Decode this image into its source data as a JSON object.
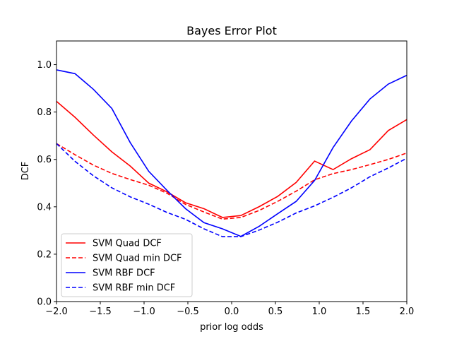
{
  "chart_data": {
    "type": "line",
    "title": "Bayes Error Plot",
    "xlabel": "prior log odds",
    "ylabel": "DCF",
    "xlim": [
      -2.0,
      2.0
    ],
    "ylim": [
      0.0,
      1.1
    ],
    "xticks": [
      -2.0,
      -1.5,
      -1.0,
      -0.5,
      0.0,
      0.5,
      1.0,
      1.5,
      2.0
    ],
    "xtick_labels": [
      "−2.0",
      "−1.5",
      "−1.0",
      "−0.5",
      "0.0",
      "0.5",
      "1.0",
      "1.5",
      "2.0"
    ],
    "yticks": [
      0.0,
      0.2,
      0.4,
      0.6,
      0.8,
      1.0
    ],
    "ytick_labels": [
      "0.0",
      "0.2",
      "0.4",
      "0.6",
      "0.8",
      "1.0"
    ],
    "grid": false,
    "legend_position": "lower-left",
    "x": [
      -2.0,
      -1.789,
      -1.579,
      -1.368,
      -1.158,
      -0.947,
      -0.737,
      -0.526,
      -0.316,
      -0.105,
      0.105,
      0.316,
      0.526,
      0.737,
      0.947,
      1.158,
      1.368,
      1.579,
      1.789,
      2.0
    ],
    "series": [
      {
        "name": "SVM Quad DCF",
        "color": "#ff0000",
        "dash": "solid",
        "values": [
          0.845,
          0.778,
          0.703,
          0.632,
          0.572,
          0.5,
          0.463,
          0.417,
          0.392,
          0.355,
          0.363,
          0.401,
          0.444,
          0.503,
          0.593,
          0.557,
          0.603,
          0.641,
          0.722,
          0.768
        ]
      },
      {
        "name": "SVM Quad min DCF",
        "color": "#ff0000",
        "dash": "dashed",
        "values": [
          0.667,
          0.62,
          0.576,
          0.541,
          0.515,
          0.491,
          0.457,
          0.41,
          0.378,
          0.348,
          0.355,
          0.385,
          0.423,
          0.466,
          0.514,
          0.54,
          0.557,
          0.578,
          0.6,
          0.627
        ]
      },
      {
        "name": "SVM RBF DCF",
        "color": "#0000ff",
        "dash": "solid",
        "values": [
          0.978,
          0.962,
          0.896,
          0.815,
          0.671,
          0.55,
          0.469,
          0.392,
          0.333,
          0.307,
          0.275,
          0.318,
          0.371,
          0.423,
          0.511,
          0.65,
          0.762,
          0.855,
          0.918,
          0.955
        ]
      },
      {
        "name": "SVM RBF min DCF",
        "color": "#0000ff",
        "dash": "dashed",
        "values": [
          0.667,
          0.592,
          0.531,
          0.48,
          0.442,
          0.411,
          0.376,
          0.347,
          0.307,
          0.274,
          0.274,
          0.302,
          0.335,
          0.374,
          0.404,
          0.44,
          0.48,
          0.527,
          0.564,
          0.605
        ]
      }
    ]
  }
}
